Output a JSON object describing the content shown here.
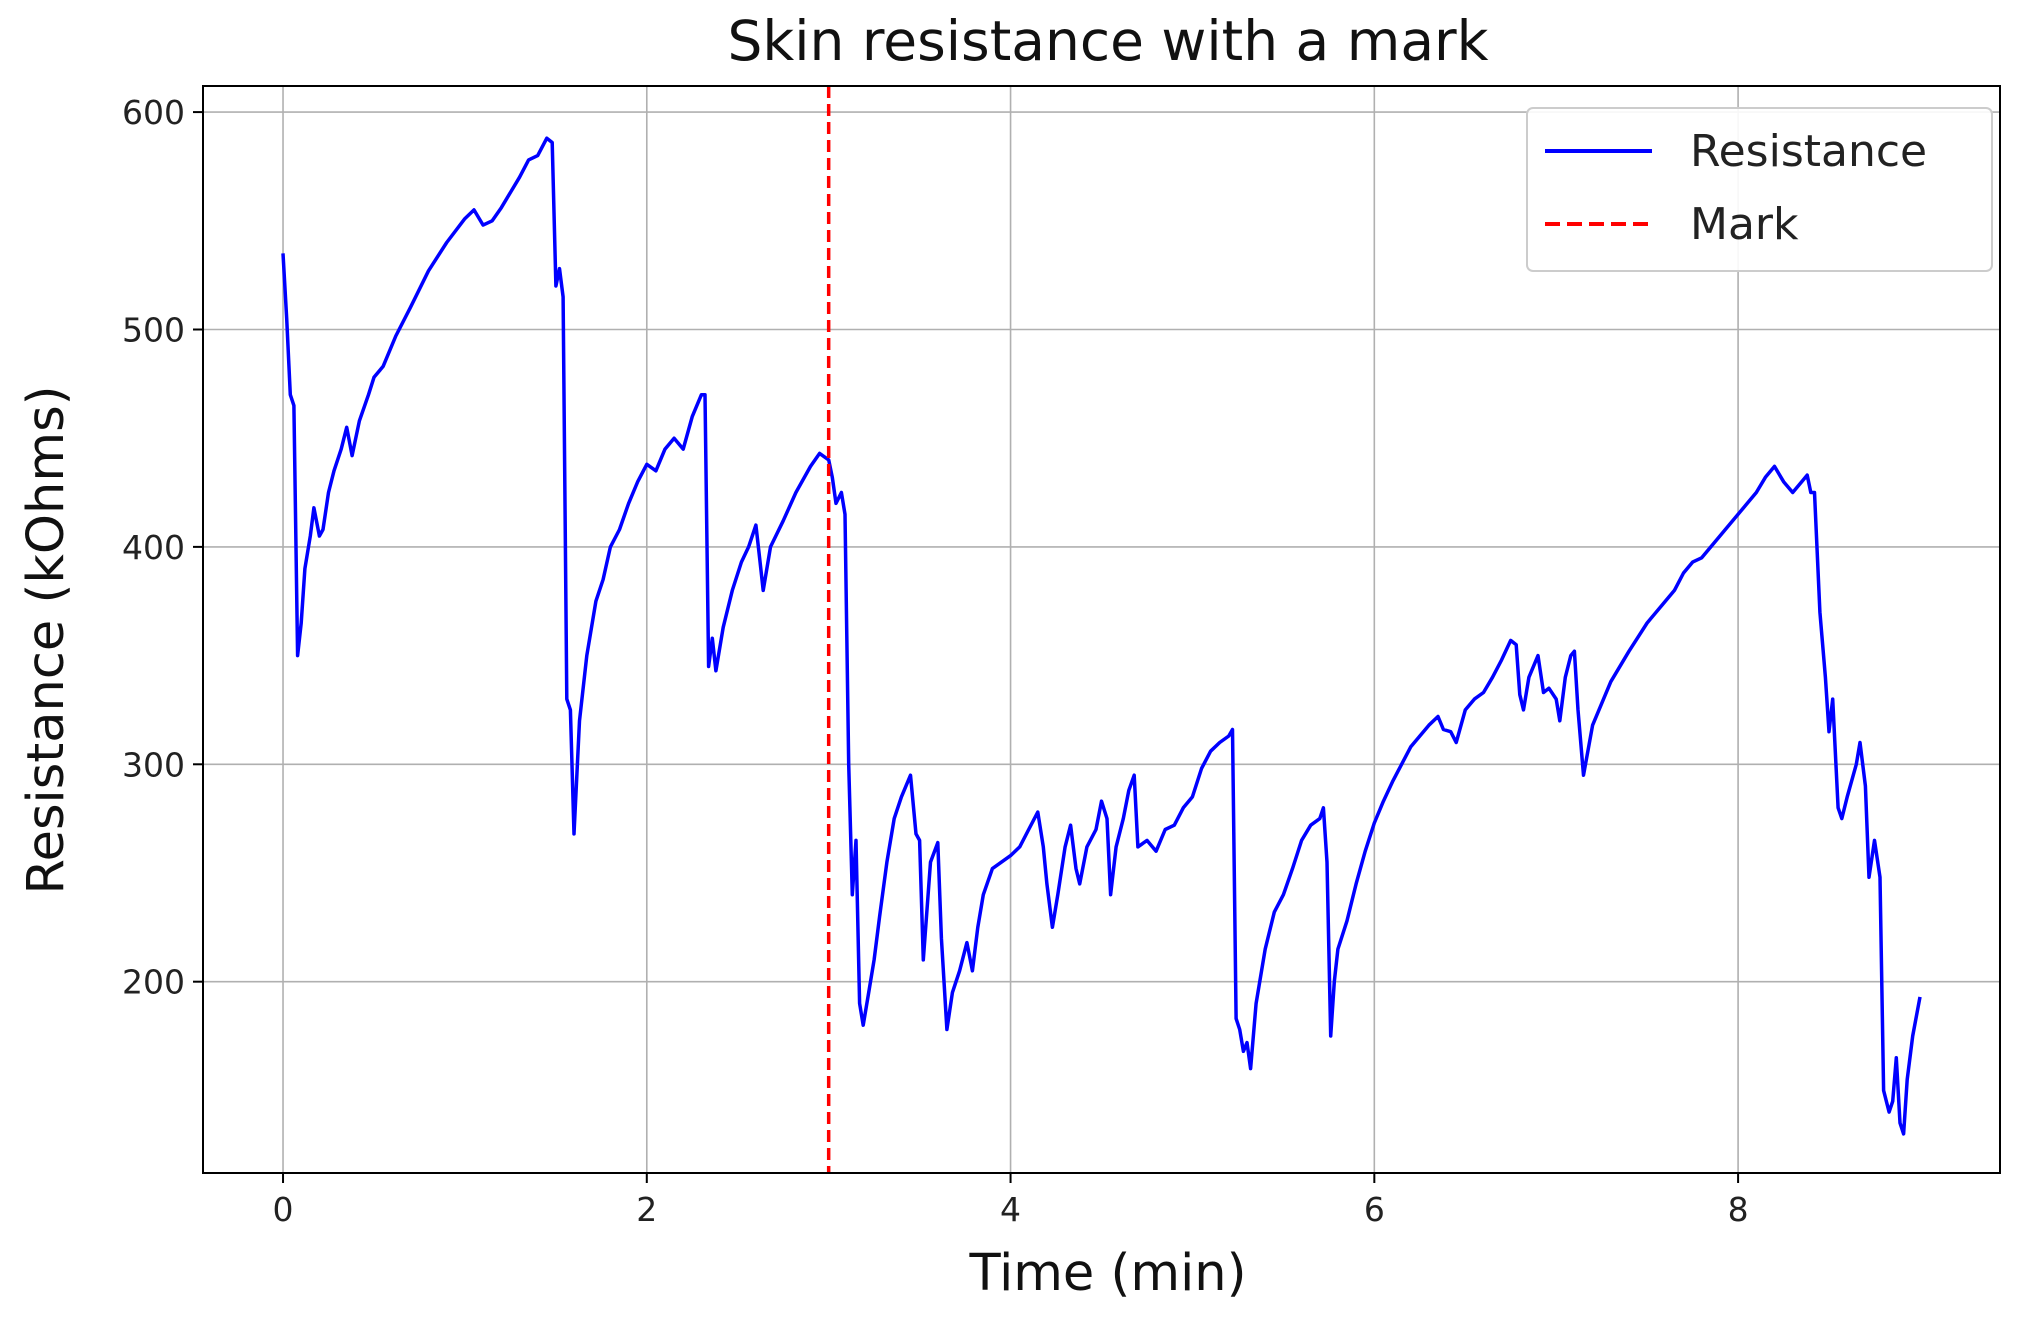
{
  "chart_data": {
    "type": "line",
    "title": "Skin resistance with a mark",
    "xlabel": "Time (min)",
    "ylabel": "Resistance (kOhms)",
    "xlim": [
      -0.44,
      9.44
    ],
    "ylim": [
      112,
      612
    ],
    "xticks": [
      0,
      2,
      4,
      6,
      8
    ],
    "yticks": [
      200,
      300,
      400,
      500,
      600
    ],
    "grid": true,
    "legend_position": "top-right",
    "series": [
      {
        "name": "Resistance",
        "color": "#0000ff",
        "style": "solid",
        "points": [
          [
            0.0,
            535
          ],
          [
            0.02,
            505
          ],
          [
            0.04,
            470
          ],
          [
            0.06,
            465
          ],
          [
            0.08,
            350
          ],
          [
            0.1,
            365
          ],
          [
            0.12,
            390
          ],
          [
            0.15,
            405
          ],
          [
            0.17,
            418
          ],
          [
            0.2,
            405
          ],
          [
            0.22,
            408
          ],
          [
            0.25,
            425
          ],
          [
            0.28,
            435
          ],
          [
            0.32,
            445
          ],
          [
            0.35,
            455
          ],
          [
            0.38,
            442
          ],
          [
            0.42,
            458
          ],
          [
            0.47,
            470
          ],
          [
            0.5,
            478
          ],
          [
            0.55,
            483
          ],
          [
            0.62,
            497
          ],
          [
            0.7,
            510
          ],
          [
            0.8,
            527
          ],
          [
            0.9,
            540
          ],
          [
            1.0,
            551
          ],
          [
            1.05,
            555
          ],
          [
            1.1,
            548
          ],
          [
            1.15,
            550
          ],
          [
            1.2,
            556
          ],
          [
            1.3,
            570
          ],
          [
            1.35,
            578
          ],
          [
            1.4,
            580
          ],
          [
            1.45,
            588
          ],
          [
            1.48,
            586
          ],
          [
            1.5,
            520
          ],
          [
            1.52,
            528
          ],
          [
            1.54,
            515
          ],
          [
            1.56,
            330
          ],
          [
            1.58,
            325
          ],
          [
            1.6,
            268
          ],
          [
            1.63,
            320
          ],
          [
            1.67,
            350
          ],
          [
            1.72,
            375
          ],
          [
            1.76,
            385
          ],
          [
            1.8,
            400
          ],
          [
            1.85,
            408
          ],
          [
            1.9,
            420
          ],
          [
            1.95,
            430
          ],
          [
            2.0,
            438
          ],
          [
            2.05,
            435
          ],
          [
            2.1,
            445
          ],
          [
            2.15,
            450
          ],
          [
            2.2,
            445
          ],
          [
            2.25,
            460
          ],
          [
            2.3,
            470
          ],
          [
            2.32,
            470
          ],
          [
            2.34,
            345
          ],
          [
            2.36,
            358
          ],
          [
            2.38,
            343
          ],
          [
            2.42,
            363
          ],
          [
            2.47,
            380
          ],
          [
            2.52,
            393
          ],
          [
            2.56,
            400
          ],
          [
            2.6,
            410
          ],
          [
            2.62,
            395
          ],
          [
            2.64,
            380
          ],
          [
            2.68,
            400
          ],
          [
            2.75,
            412
          ],
          [
            2.82,
            425
          ],
          [
            2.9,
            437
          ],
          [
            2.95,
            443
          ],
          [
            3.0,
            440
          ],
          [
            3.02,
            432
          ],
          [
            3.04,
            420
          ],
          [
            3.07,
            425
          ],
          [
            3.09,
            415
          ],
          [
            3.11,
            300
          ],
          [
            3.13,
            240
          ],
          [
            3.15,
            265
          ],
          [
            3.17,
            190
          ],
          [
            3.19,
            180
          ],
          [
            3.22,
            195
          ],
          [
            3.25,
            210
          ],
          [
            3.28,
            230
          ],
          [
            3.32,
            255
          ],
          [
            3.36,
            275
          ],
          [
            3.4,
            285
          ],
          [
            3.45,
            295
          ],
          [
            3.48,
            268
          ],
          [
            3.5,
            265
          ],
          [
            3.52,
            210
          ],
          [
            3.56,
            255
          ],
          [
            3.6,
            264
          ],
          [
            3.62,
            220
          ],
          [
            3.65,
            178
          ],
          [
            3.68,
            195
          ],
          [
            3.72,
            205
          ],
          [
            3.76,
            218
          ],
          [
            3.79,
            205
          ],
          [
            3.82,
            225
          ],
          [
            3.85,
            240
          ],
          [
            3.9,
            252
          ],
          [
            3.95,
            255
          ],
          [
            4.0,
            258
          ],
          [
            4.05,
            262
          ],
          [
            4.1,
            270
          ],
          [
            4.15,
            278
          ],
          [
            4.18,
            262
          ],
          [
            4.2,
            245
          ],
          [
            4.23,
            225
          ],
          [
            4.26,
            240
          ],
          [
            4.3,
            262
          ],
          [
            4.33,
            272
          ],
          [
            4.36,
            252
          ],
          [
            4.38,
            245
          ],
          [
            4.42,
            262
          ],
          [
            4.47,
            270
          ],
          [
            4.5,
            283
          ],
          [
            4.53,
            275
          ],
          [
            4.55,
            240
          ],
          [
            4.58,
            262
          ],
          [
            4.62,
            275
          ],
          [
            4.65,
            288
          ],
          [
            4.68,
            295
          ],
          [
            4.7,
            262
          ],
          [
            4.75,
            265
          ],
          [
            4.8,
            260
          ],
          [
            4.85,
            270
          ],
          [
            4.9,
            272
          ],
          [
            4.95,
            280
          ],
          [
            5.0,
            285
          ],
          [
            5.05,
            298
          ],
          [
            5.1,
            306
          ],
          [
            5.15,
            310
          ],
          [
            5.2,
            313
          ],
          [
            5.22,
            316
          ],
          [
            5.24,
            183
          ],
          [
            5.26,
            178
          ],
          [
            5.28,
            168
          ],
          [
            5.3,
            172
          ],
          [
            5.32,
            160
          ],
          [
            5.35,
            190
          ],
          [
            5.4,
            215
          ],
          [
            5.45,
            232
          ],
          [
            5.5,
            240
          ],
          [
            5.55,
            252
          ],
          [
            5.6,
            265
          ],
          [
            5.65,
            272
          ],
          [
            5.7,
            275
          ],
          [
            5.72,
            280
          ],
          [
            5.74,
            255
          ],
          [
            5.76,
            175
          ],
          [
            5.78,
            200
          ],
          [
            5.8,
            215
          ],
          [
            5.85,
            228
          ],
          [
            5.9,
            245
          ],
          [
            5.95,
            260
          ],
          [
            6.0,
            273
          ],
          [
            6.05,
            283
          ],
          [
            6.1,
            292
          ],
          [
            6.15,
            300
          ],
          [
            6.2,
            308
          ],
          [
            6.3,
            318
          ],
          [
            6.35,
            322
          ],
          [
            6.38,
            316
          ],
          [
            6.42,
            315
          ],
          [
            6.45,
            310
          ],
          [
            6.5,
            325
          ],
          [
            6.55,
            330
          ],
          [
            6.6,
            333
          ],
          [
            6.65,
            340
          ],
          [
            6.7,
            348
          ],
          [
            6.75,
            357
          ],
          [
            6.78,
            355
          ],
          [
            6.8,
            332
          ],
          [
            6.82,
            325
          ],
          [
            6.85,
            340
          ],
          [
            6.9,
            350
          ],
          [
            6.93,
            333
          ],
          [
            6.96,
            335
          ],
          [
            7.0,
            330
          ],
          [
            7.02,
            320
          ],
          [
            7.05,
            340
          ],
          [
            7.08,
            350
          ],
          [
            7.1,
            352
          ],
          [
            7.12,
            325
          ],
          [
            7.15,
            295
          ],
          [
            7.2,
            318
          ],
          [
            7.3,
            338
          ],
          [
            7.4,
            352
          ],
          [
            7.5,
            365
          ],
          [
            7.6,
            375
          ],
          [
            7.65,
            380
          ],
          [
            7.7,
            388
          ],
          [
            7.75,
            393
          ],
          [
            7.8,
            395
          ],
          [
            7.9,
            405
          ],
          [
            8.0,
            415
          ],
          [
            8.05,
            420
          ],
          [
            8.1,
            425
          ],
          [
            8.15,
            432
          ],
          [
            8.2,
            437
          ],
          [
            8.25,
            430
          ],
          [
            8.3,
            425
          ],
          [
            8.35,
            430
          ],
          [
            8.38,
            433
          ],
          [
            8.4,
            425
          ],
          [
            8.42,
            425
          ],
          [
            8.45,
            370
          ],
          [
            8.48,
            340
          ],
          [
            8.5,
            315
          ],
          [
            8.52,
            330
          ],
          [
            8.55,
            280
          ],
          [
            8.57,
            275
          ],
          [
            8.6,
            285
          ],
          [
            8.65,
            300
          ],
          [
            8.67,
            310
          ],
          [
            8.7,
            290
          ],
          [
            8.72,
            248
          ],
          [
            8.75,
            265
          ],
          [
            8.78,
            248
          ],
          [
            8.8,
            150
          ],
          [
            8.83,
            140
          ],
          [
            8.85,
            145
          ],
          [
            8.87,
            165
          ],
          [
            8.89,
            135
          ],
          [
            8.91,
            130
          ],
          [
            8.93,
            155
          ],
          [
            8.96,
            175
          ],
          [
            9.0,
            193
          ]
        ]
      },
      {
        "name": "Mark",
        "color": "#ff0000",
        "style": "dashed",
        "x": 3.0
      }
    ]
  }
}
